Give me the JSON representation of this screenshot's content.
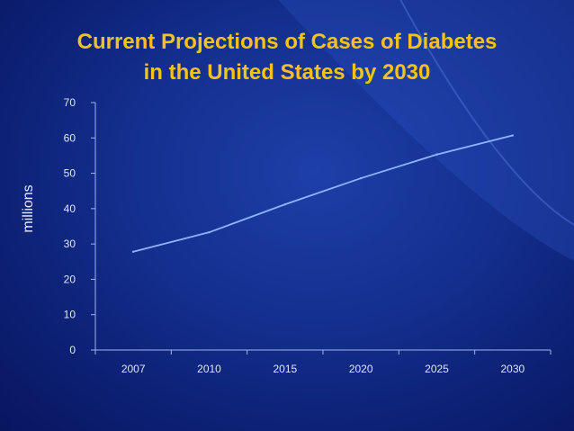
{
  "title_line1": "Current Projections of Cases of Diabetes",
  "title_line2": "in the United States by 2030",
  "chart_data": {
    "type": "line",
    "title": "Current Projections of Cases of Diabetes in the United States by 2030",
    "xlabel": "",
    "ylabel": "millions",
    "categories": [
      "2007",
      "2010",
      "2015",
      "2020",
      "2025",
      "2030"
    ],
    "values": [
      27.8,
      33.3,
      41.2,
      48.6,
      55.3,
      60.7
    ],
    "ylim": [
      0,
      70
    ],
    "yticks": [
      0,
      10,
      20,
      30,
      40,
      50,
      60,
      70
    ],
    "grid": false,
    "series_color": "#8fb3ff"
  },
  "colors": {
    "background": "#143090",
    "title": "#f5c21a",
    "axis": "#9fb4f0"
  }
}
